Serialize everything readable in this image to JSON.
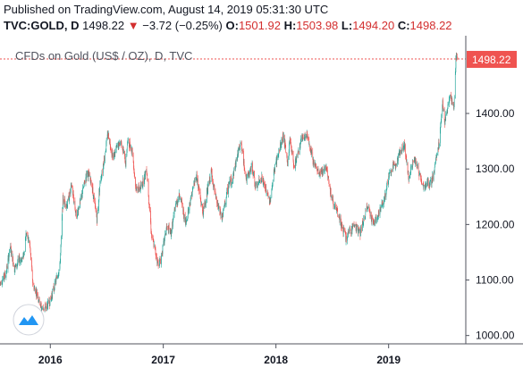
{
  "header": {
    "published": "Published on TradingView.com, August 14, 2019 05:31:30 UTC",
    "symbol": "TVC:GOLD, D",
    "last": "1498.22",
    "change_arrow": "▼",
    "change": "−3.72 (−0.25%)",
    "open_label": "O:",
    "open": "1501.92",
    "high_label": "H:",
    "high": "1503.98",
    "low_label": "L:",
    "low": "1494.20",
    "close_label": "C:",
    "close": "1498.22"
  },
  "colors": {
    "up": "#26a69a",
    "down": "#ef5350",
    "price_line": "#ef5350",
    "badge": "#ef5350",
    "logo": "#2196f3"
  },
  "logo_icon": "tradingview-logo-icon",
  "chart_data": {
    "type": "candlestick",
    "title": "CFDs on Gold (US$ / OZ), D, TVC",
    "x_tick_labels": [
      "2016",
      "2017",
      "2018",
      "2019"
    ],
    "y_tick_labels": [
      "1000.00",
      "1100.00",
      "1200.00",
      "1300.00",
      "1400.00"
    ],
    "y_ticks": [
      1000,
      1100,
      1200,
      1300,
      1400
    ],
    "ylim": [
      985,
      1540
    ],
    "xlim": [
      "2015-07-22",
      "2019-09-08"
    ],
    "last_price": 1498.22,
    "last_price_label": "1498.22",
    "grid": false,
    "price_path": [
      [
        "2015-07-22",
        1095
      ],
      [
        "2015-08-10",
        1110
      ],
      [
        "2015-08-24",
        1160
      ],
      [
        "2015-09-07",
        1120
      ],
      [
        "2015-09-21",
        1135
      ],
      [
        "2015-10-05",
        1140
      ],
      [
        "2015-10-15",
        1185
      ],
      [
        "2015-10-26",
        1165
      ],
      [
        "2015-11-06",
        1090
      ],
      [
        "2015-11-20",
        1075
      ],
      [
        "2015-12-03",
        1050
      ],
      [
        "2015-12-17",
        1050
      ],
      [
        "2015-12-31",
        1062
      ],
      [
        "2016-01-15",
        1090
      ],
      [
        "2016-02-01",
        1125
      ],
      [
        "2016-02-11",
        1245
      ],
      [
        "2016-02-25",
        1235
      ],
      [
        "2016-03-10",
        1270
      ],
      [
        "2016-03-25",
        1215
      ],
      [
        "2016-04-07",
        1240
      ],
      [
        "2016-04-29",
        1295
      ],
      [
        "2016-05-13",
        1275
      ],
      [
        "2016-05-31",
        1210
      ],
      [
        "2016-06-10",
        1275
      ],
      [
        "2016-06-24",
        1320
      ],
      [
        "2016-07-06",
        1365
      ],
      [
        "2016-07-22",
        1320
      ],
      [
        "2016-08-05",
        1340
      ],
      [
        "2016-08-18",
        1350
      ],
      [
        "2016-09-01",
        1310
      ],
      [
        "2016-09-07",
        1350
      ],
      [
        "2016-09-22",
        1335
      ],
      [
        "2016-10-04",
        1265
      ],
      [
        "2016-10-20",
        1265
      ],
      [
        "2016-11-08",
        1300
      ],
      [
        "2016-11-24",
        1180
      ],
      [
        "2016-12-15",
        1130
      ],
      [
        "2016-12-23",
        1135
      ],
      [
        "2017-01-12",
        1195
      ],
      [
        "2017-01-26",
        1185
      ],
      [
        "2017-02-10",
        1235
      ],
      [
        "2017-02-24",
        1255
      ],
      [
        "2017-03-14",
        1200
      ],
      [
        "2017-03-30",
        1245
      ],
      [
        "2017-04-18",
        1290
      ],
      [
        "2017-05-09",
        1220
      ],
      [
        "2017-06-06",
        1295
      ],
      [
        "2017-06-20",
        1245
      ],
      [
        "2017-07-10",
        1210
      ],
      [
        "2017-07-31",
        1270
      ],
      [
        "2017-08-14",
        1285
      ],
      [
        "2017-09-08",
        1350
      ],
      [
        "2017-09-28",
        1280
      ],
      [
        "2017-10-16",
        1305
      ],
      [
        "2017-10-27",
        1265
      ],
      [
        "2017-11-15",
        1285
      ],
      [
        "2017-12-12",
        1240
      ],
      [
        "2017-12-29",
        1305
      ],
      [
        "2018-01-25",
        1360
      ],
      [
        "2018-02-08",
        1310
      ],
      [
        "2018-02-15",
        1355
      ],
      [
        "2018-03-01",
        1305
      ],
      [
        "2018-03-23",
        1350
      ],
      [
        "2018-04-11",
        1365
      ],
      [
        "2018-04-30",
        1315
      ],
      [
        "2018-05-21",
        1290
      ],
      [
        "2018-06-14",
        1305
      ],
      [
        "2018-06-29",
        1250
      ],
      [
        "2018-07-19",
        1220
      ],
      [
        "2018-08-16",
        1175
      ],
      [
        "2018-09-10",
        1200
      ],
      [
        "2018-10-01",
        1185
      ],
      [
        "2018-10-26",
        1235
      ],
      [
        "2018-11-13",
        1200
      ],
      [
        "2018-11-30",
        1220
      ],
      [
        "2018-12-17",
        1245
      ],
      [
        "2019-01-04",
        1290
      ],
      [
        "2019-01-31",
        1320
      ],
      [
        "2019-02-20",
        1345
      ],
      [
        "2019-03-07",
        1285
      ],
      [
        "2019-03-25",
        1320
      ],
      [
        "2019-04-23",
        1270
      ],
      [
        "2019-05-20",
        1275
      ],
      [
        "2019-05-31",
        1305
      ],
      [
        "2019-06-14",
        1350
      ],
      [
        "2019-06-25",
        1420
      ],
      [
        "2019-07-02",
        1385
      ],
      [
        "2019-07-19",
        1430
      ],
      [
        "2019-08-01",
        1410
      ],
      [
        "2019-08-07",
        1500
      ],
      [
        "2019-08-13",
        1498
      ]
    ]
  }
}
